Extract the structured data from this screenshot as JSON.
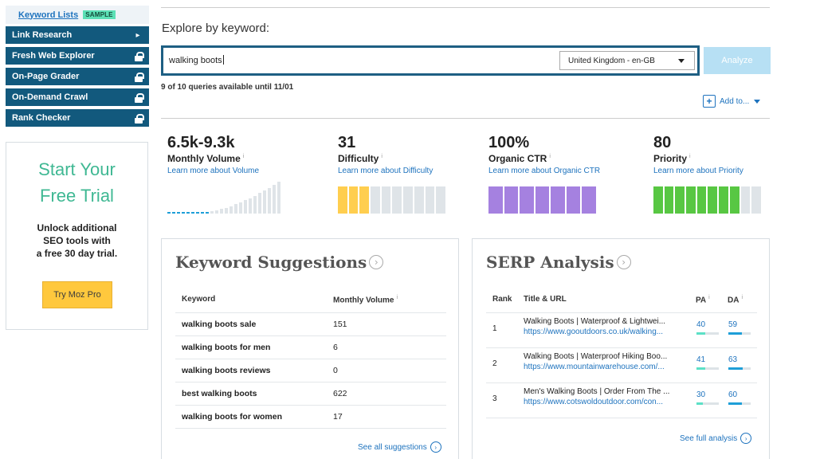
{
  "sidebar": {
    "keyword_lists": "Keyword Lists",
    "sample_badge": "SAMPLE",
    "items": [
      {
        "label": "Link Research",
        "icon": "chevron-right-icon"
      },
      {
        "label": "Fresh Web Explorer",
        "icon": "lock-icon"
      },
      {
        "label": "On-Page Grader",
        "icon": "lock-icon"
      },
      {
        "label": "On-Demand Crawl",
        "icon": "lock-icon"
      },
      {
        "label": "Rank Checker",
        "icon": "lock-icon"
      }
    ],
    "trial": {
      "title_line1": "Start Your",
      "title_line2": "Free Trial",
      "desc_line1": "Unlock additional",
      "desc_line2": "SEO tools with",
      "desc_line3": "a free 30 day trial.",
      "button": "Try Moz Pro"
    }
  },
  "explore": {
    "heading": "Explore by keyword:",
    "query": "walking boots",
    "locale": "United Kingdom - en-GB",
    "analyze_button": "Analyze",
    "queries_note": "9 of 10 queries available until 11/01",
    "add_to": "Add to..."
  },
  "metrics": [
    {
      "value": "6.5k-9.3k",
      "label": "Monthly Volume",
      "learn": "Learn more about Volume",
      "color": "#dfe4e8"
    },
    {
      "value": "31",
      "label": "Difficulty",
      "learn": "Learn more about Difficulty",
      "color": "#ffce4f",
      "filled_segments": 3,
      "total_segments": 10
    },
    {
      "value": "100%",
      "label": "Organic CTR",
      "learn": "Learn more about Organic CTR",
      "color": "#a581e0",
      "filled_segments": 7,
      "total_segments": 7
    },
    {
      "value": "80",
      "label": "Priority",
      "learn": "Learn more about Priority",
      "color": "#58c743",
      "filled_segments": 8,
      "total_segments": 10
    }
  ],
  "suggestions": {
    "title": "Keyword Suggestions",
    "col_keyword": "Keyword",
    "col_volume": "Monthly Volume",
    "rows": [
      {
        "keyword": "walking boots sale",
        "volume": "151"
      },
      {
        "keyword": "walking boots for men",
        "volume": "6"
      },
      {
        "keyword": "walking boots reviews",
        "volume": "0"
      },
      {
        "keyword": "best walking boots",
        "volume": "622"
      },
      {
        "keyword": "walking boots for women",
        "volume": "17"
      }
    ],
    "see_all": "See all suggestions"
  },
  "serp": {
    "title": "SERP Analysis",
    "col_rank": "Rank",
    "col_title": "Title & URL",
    "col_pa": "PA",
    "col_da": "DA",
    "rows": [
      {
        "rank": "1",
        "title": "Walking Boots | Waterproof & Lightwei...",
        "url": "https://www.gooutdoors.co.uk/walking...",
        "pa": "40",
        "da": "59"
      },
      {
        "rank": "2",
        "title": "Walking Boots | Waterproof Hiking Boo...",
        "url": "https://www.mountainwarehouse.com/...",
        "pa": "41",
        "da": "63"
      },
      {
        "rank": "3",
        "title": "Men's Walking Boots | Order From The ...",
        "url": "https://www.cotswoldoutdoor.com/con...",
        "pa": "30",
        "da": "60"
      }
    ],
    "see_full": "See full analysis"
  },
  "info_mark": "i"
}
